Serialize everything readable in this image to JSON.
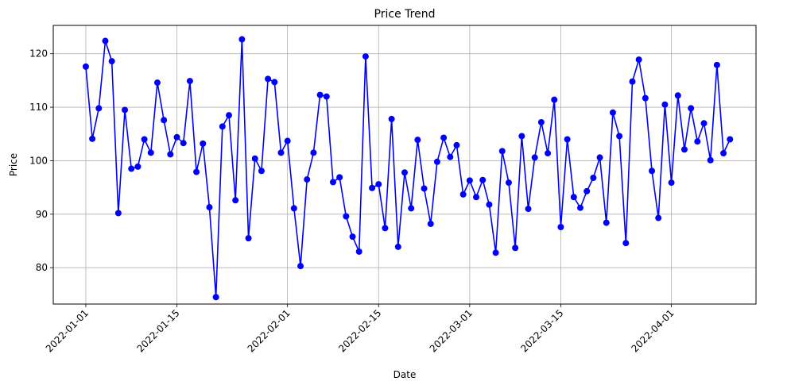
{
  "chart_data": {
    "type": "line",
    "title": "Price Trend",
    "xlabel": "Date",
    "ylabel": "Price",
    "x_start": "2022-01-01",
    "x_step_days": 1,
    "xlim": [
      "2021-12-27",
      "2022-04-14"
    ],
    "ylim": [
      73.2,
      125.3
    ],
    "x_ticks": [
      "2022-01-01",
      "2022-01-15",
      "2022-02-01",
      "2022-02-15",
      "2022-03-01",
      "2022-03-15",
      "2022-04-01"
    ],
    "y_ticks": [
      80,
      90,
      100,
      110,
      120
    ],
    "grid": true,
    "series": [
      {
        "color": "#0000ff",
        "marker": "circle",
        "values": [
          117.6,
          104.1,
          109.8,
          122.4,
          118.6,
          90.2,
          109.5,
          98.5,
          98.9,
          104.0,
          101.5,
          114.6,
          107.6,
          101.2,
          104.4,
          103.3,
          114.9,
          97.9,
          103.2,
          91.3,
          74.5,
          106.4,
          108.5,
          92.6,
          122.7,
          85.5,
          100.4,
          98.1,
          115.3,
          114.7,
          101.5,
          103.7,
          91.1,
          80.3,
          96.5,
          101.5,
          112.3,
          112.0,
          96.0,
          96.9,
          89.6,
          85.8,
          83.0,
          119.5,
          94.9,
          95.6,
          87.4,
          107.8,
          83.9,
          97.8,
          91.1,
          103.9,
          94.8,
          88.2,
          99.8,
          104.3,
          100.7,
          102.9,
          93.7,
          96.3,
          93.2,
          96.4,
          91.8,
          82.8,
          101.8,
          95.9,
          83.7,
          104.6,
          91.0,
          100.6,
          107.2,
          101.4,
          111.4,
          87.6,
          104.0,
          93.2,
          91.2,
          94.3,
          96.8,
          100.6,
          88.4,
          109.0,
          104.6,
          84.6,
          114.8,
          118.9,
          111.7,
          98.1,
          89.3,
          110.5,
          95.9,
          112.2,
          102.1,
          109.8,
          103.6,
          107.0,
          100.1,
          117.9,
          101.4,
          104.0
        ]
      }
    ]
  }
}
